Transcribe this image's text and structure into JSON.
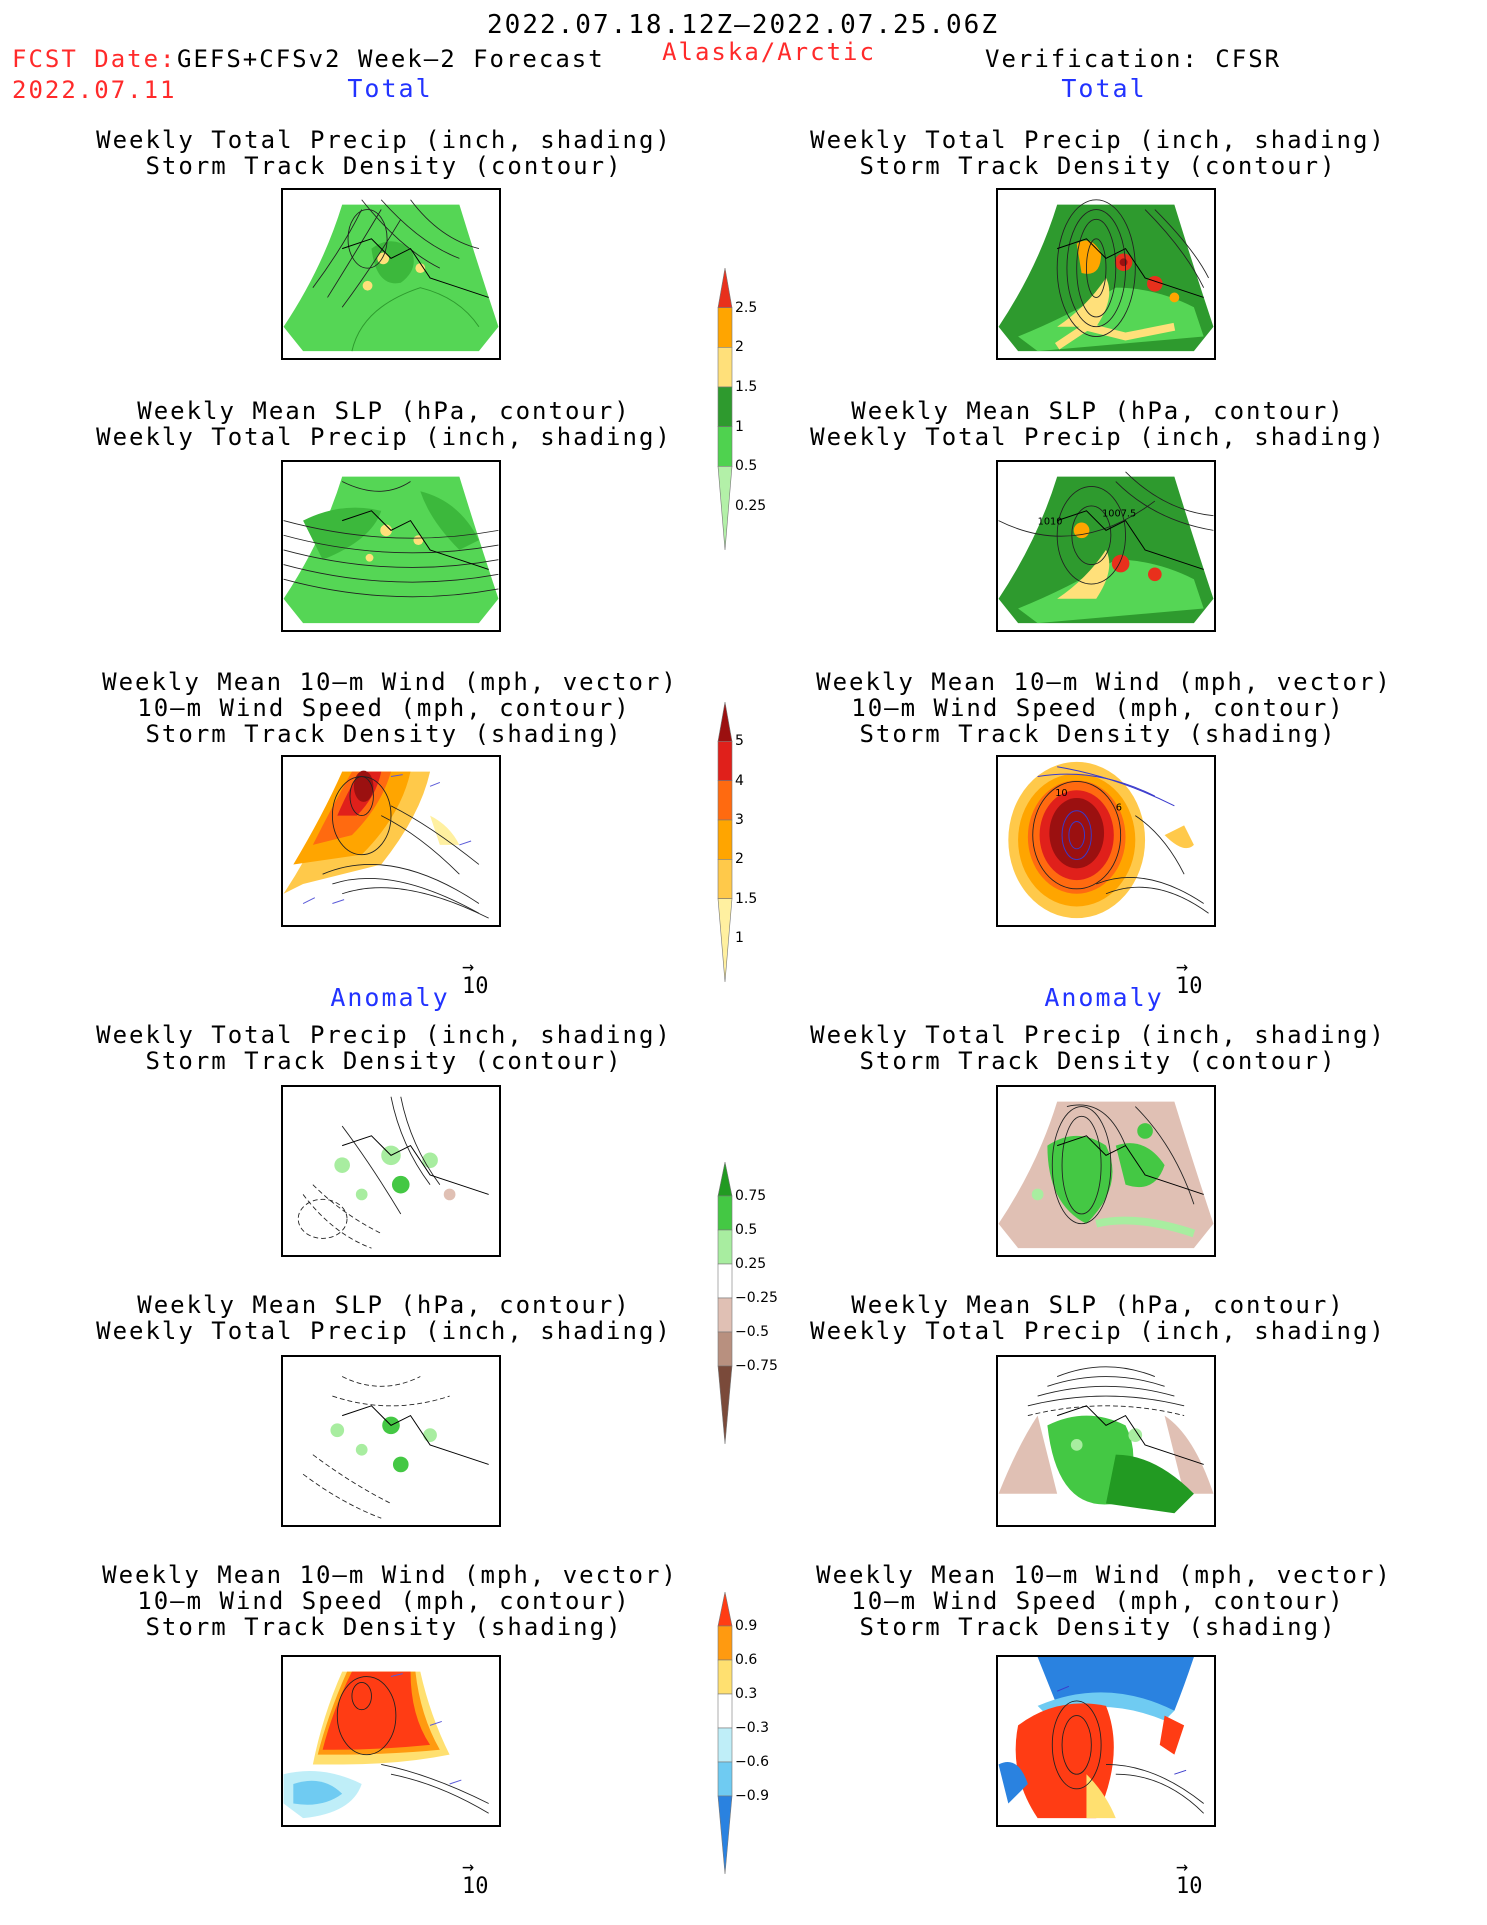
{
  "header": {
    "valid_period": "2022.07.18.12Z–2022.07.25.06Z",
    "fcst_label": "FCST Date:",
    "fcst_model": "GEFS+CFSv2 Week–2 Forecast",
    "fcst_date": "2022.07.11",
    "region": "Alaska/Arctic",
    "verification": "Verification: CFSR"
  },
  "sections": {
    "total_left": "Total",
    "total_right": "Total",
    "anomaly_left": "Anomaly",
    "anomaly_right": "Anomaly"
  },
  "panel_titles": {
    "precip_storm": [
      "Weekly Total Precip (inch, shading)",
      "Storm Track Density (contour)"
    ],
    "slp_precip": [
      "Weekly Mean SLP (hPa, contour)",
      "Weekly Total Precip (inch, shading)"
    ],
    "wind_storm": [
      "Weekly Mean 10–m Wind (mph, vector)",
      "10–m Wind Speed (mph, contour)",
      "Storm Track Density (shading)"
    ]
  },
  "contour_labels": {
    "slp_a": "1010",
    "slp_b": "1007.5",
    "wind_a": "10",
    "wind_b": "6"
  },
  "vector_ref": "10",
  "colorbars": {
    "precip_total": {
      "ticks": [
        "2.5",
        "2",
        "1.5",
        "1",
        "0.5",
        "0.25"
      ],
      "colors": [
        "#e8301c",
        "#ffa500",
        "#ffe07a",
        "#2e9a2e",
        "#4fd24f",
        "#b3f0a8"
      ]
    },
    "storm_total": {
      "ticks": [
        "5",
        "4",
        "3",
        "2",
        "1.5",
        "1"
      ],
      "colors": [
        "#9b1010",
        "#e0201b",
        "#ff6a10",
        "#ffa500",
        "#ffc94a",
        "#fff0a0"
      ]
    },
    "precip_anom": {
      "ticks": [
        "0.75",
        "0.5",
        "0.25",
        "−0.25",
        "−0.5",
        "−0.75"
      ],
      "colors": [
        "#229a22",
        "#44c844",
        "#a8eda0",
        "#ffffff",
        "#e0c0b4",
        "#b8907f",
        "#7a4a3a"
      ]
    },
    "storm_anom": {
      "ticks": [
        "0.9",
        "0.6",
        "0.3",
        "−0.3",
        "−0.6",
        "−0.9"
      ],
      "colors": [
        "#ff3c14",
        "#ff9a10",
        "#ffe070",
        "#ffffff",
        "#bfeef8",
        "#6fcbf2",
        "#2a82e0"
      ]
    }
  }
}
